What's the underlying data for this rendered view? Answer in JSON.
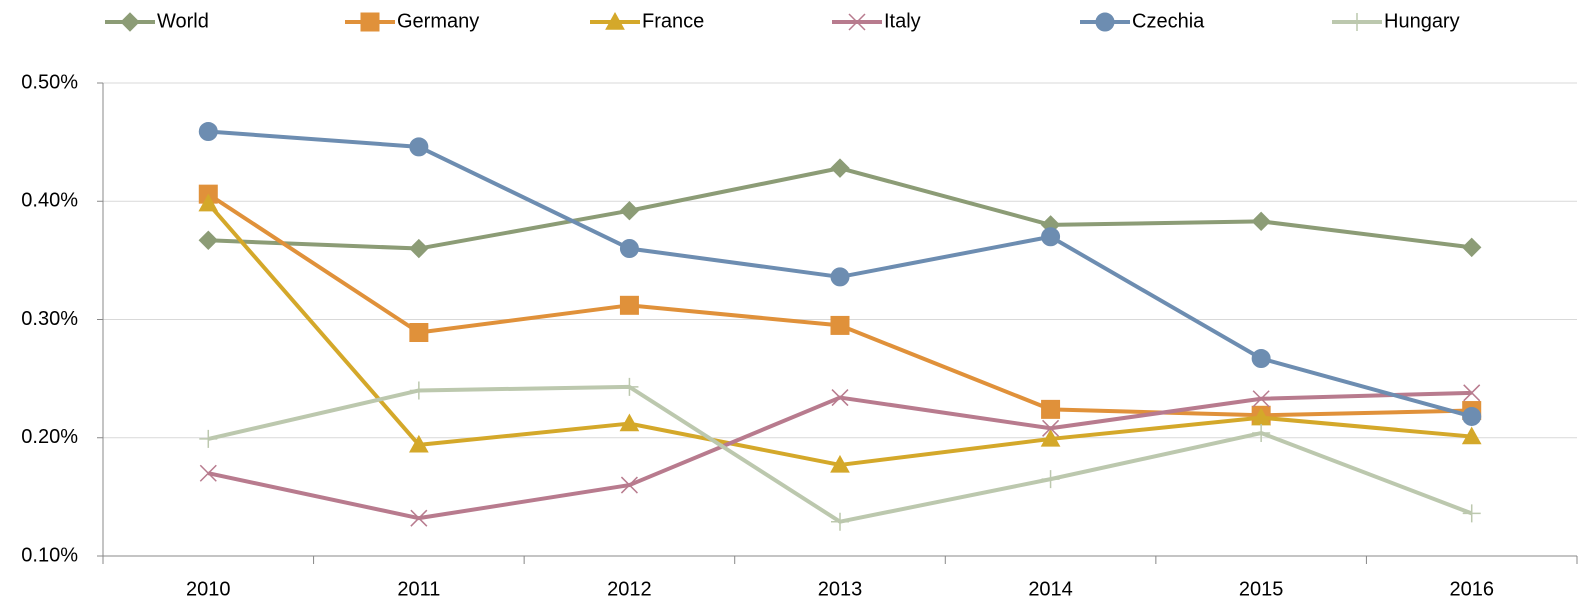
{
  "chart_data": {
    "type": "line",
    "categories": [
      "2010",
      "2011",
      "2012",
      "2013",
      "2014",
      "2015",
      "2016"
    ],
    "series": [
      {
        "name": "World",
        "color": "#8c9c76",
        "marker": "diamond",
        "values": [
          0.367,
          0.36,
          0.392,
          0.428,
          0.38,
          0.383,
          0.361
        ]
      },
      {
        "name": "Germany",
        "color": "#e0913a",
        "marker": "square",
        "values": [
          0.406,
          0.289,
          0.312,
          0.295,
          0.224,
          0.219,
          0.223
        ]
      },
      {
        "name": "France",
        "color": "#d4a82a",
        "marker": "triangle",
        "values": [
          0.398,
          0.194,
          0.212,
          0.177,
          0.199,
          0.217,
          0.201
        ]
      },
      {
        "name": "Italy",
        "color": "#b87b8e",
        "marker": "x",
        "values": [
          0.17,
          0.132,
          0.16,
          0.234,
          0.208,
          0.233,
          0.238
        ]
      },
      {
        "name": "Czechia",
        "color": "#6d8db1",
        "marker": "circle",
        "values": [
          0.459,
          0.446,
          0.36,
          0.336,
          0.37,
          0.267,
          0.218
        ]
      },
      {
        "name": "Hungary",
        "color": "#bcc8ae",
        "marker": "plus",
        "values": [
          0.199,
          0.24,
          0.243,
          0.129,
          0.165,
          0.204,
          0.136
        ]
      }
    ],
    "ylim": [
      0.1,
      0.5
    ],
    "yticks": [
      {
        "value": 0.1,
        "label": "0.10%"
      },
      {
        "value": 0.2,
        "label": "0.20%"
      },
      {
        "value": 0.3,
        "label": "0.30%"
      },
      {
        "value": 0.4,
        "label": "0.40%"
      },
      {
        "value": 0.5,
        "label": "0.50%"
      }
    ],
    "grid": true,
    "legend": "top"
  }
}
